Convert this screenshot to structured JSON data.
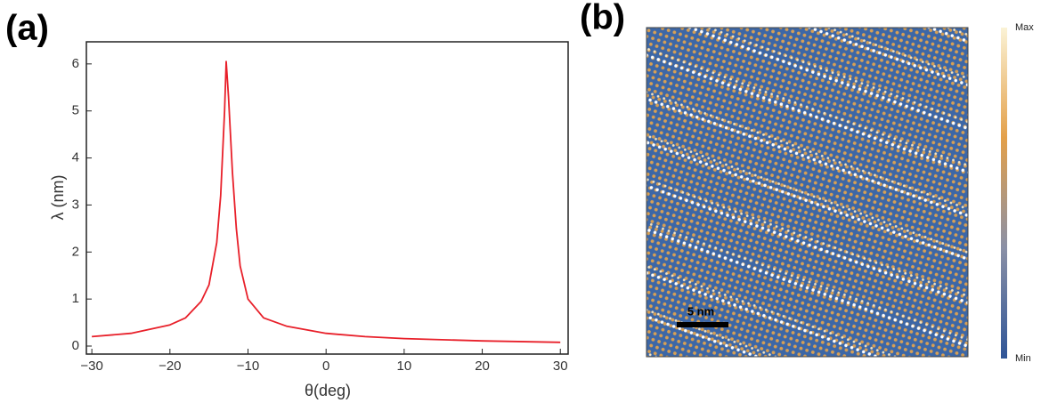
{
  "chart_data": [
    {
      "type": "line",
      "label": "(a)",
      "xlabel": "θ(deg)",
      "ylabel": "λ (nm)",
      "color": "#e8202a",
      "x": [
        -30,
        -25,
        -20,
        -18,
        -16,
        -15,
        -14,
        -13.5,
        -13,
        -12.8,
        -12.5,
        -12,
        -11.5,
        -11,
        -10,
        -8,
        -5,
        0,
        5,
        10,
        20,
        30
      ],
      "y": [
        0.2,
        0.27,
        0.45,
        0.6,
        0.95,
        1.3,
        2.2,
        3.2,
        5,
        6.05,
        5.3,
        3.7,
        2.5,
        1.7,
        1.0,
        0.6,
        0.42,
        0.27,
        0.2,
        0.16,
        0.11,
        0.08
      ],
      "xlim": [
        -30.7,
        31
      ],
      "ylim": [
        -0.17,
        6.47
      ],
      "xticks": [
        {
          "value": -30,
          "label": "−30"
        },
        {
          "value": -20,
          "label": "−20"
        },
        {
          "value": -10,
          "label": "−10"
        },
        0,
        10,
        20,
        30
      ],
      "yticks": [
        0,
        1,
        2,
        3,
        4,
        5,
        6
      ]
    },
    {
      "type": "image",
      "label": "(b)",
      "scale_bar": "5 nm",
      "colorbar": {
        "max_label": "Max",
        "min_label": "Min",
        "colors": [
          "#2f5597",
          "#8a90a6",
          "#e3a04a",
          "#fbf3d6"
        ]
      }
    }
  ]
}
